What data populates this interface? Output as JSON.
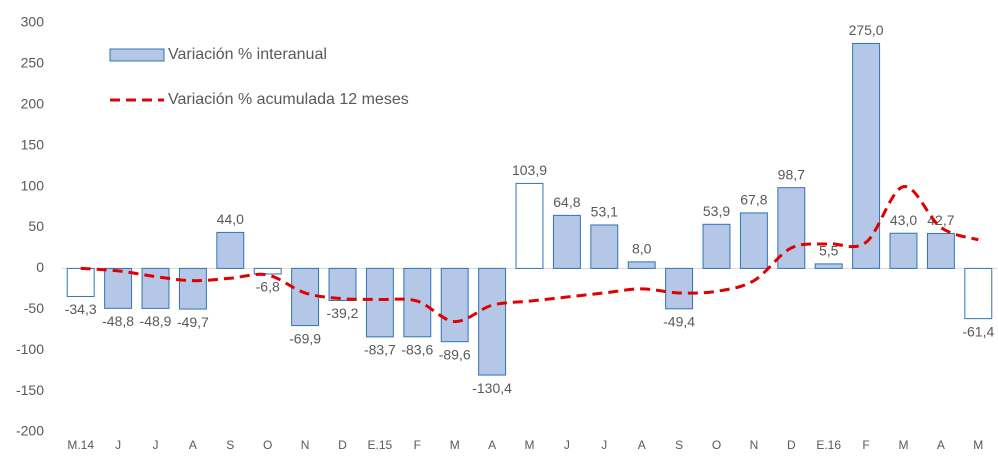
{
  "chart_data": {
    "type": "bar-line",
    "categories": [
      "M.14",
      "J",
      "J",
      "A",
      "S",
      "O",
      "N",
      "D",
      "E.15",
      "F",
      "M",
      "A",
      "M",
      "J",
      "J",
      "A",
      "S",
      "O",
      "N",
      "D",
      "E.16",
      "F",
      "M",
      "A",
      "M"
    ],
    "series": [
      {
        "name": "Variación % interanual",
        "type": "bar",
        "color": "#b4c7e7",
        "edge_color": "#2e75b6",
        "colors": [
          "#ffffff",
          "#b4c7e7",
          "#b4c7e7",
          "#b4c7e7",
          "#b4c7e7",
          "#ffffff",
          "#b4c7e7",
          "#b4c7e7",
          "#b4c7e7",
          "#b4c7e7",
          "#b4c7e7",
          "#b4c7e7",
          "#ffffff",
          "#b4c7e7",
          "#b4c7e7",
          "#b4c7e7",
          "#b4c7e7",
          "#b4c7e7",
          "#b4c7e7",
          "#b4c7e7",
          "#b4c7e7",
          "#b4c7e7",
          "#b4c7e7",
          "#b4c7e7",
          "#ffffff"
        ],
        "values": [
          -34.3,
          -48.8,
          -48.9,
          -49.7,
          44.0,
          -6.8,
          -69.9,
          -39.2,
          -83.7,
          -83.6,
          -89.6,
          -130.4,
          103.9,
          64.8,
          53.1,
          8.0,
          -49.4,
          53.9,
          67.8,
          98.7,
          5.5,
          275.0,
          43.0,
          42.7,
          -61.4
        ],
        "value_labels": [
          "-34,3",
          "-48,8",
          "-48,9",
          "-49,7",
          "44,0",
          "-6,8",
          "-69,9",
          "-39,2",
          "-83,7",
          "-83,6",
          "-89,6",
          "-130,4",
          "103,9",
          "64,8",
          "53,1",
          "8,0",
          "-49,4",
          "53,9",
          "67,8",
          "98,7",
          "5,5",
          "275,0",
          "43,0",
          "42,7",
          "-61,4"
        ]
      },
      {
        "name": "Variación % acumulada 12 meses",
        "type": "line",
        "color": "#e00000",
        "dashed": true,
        "values": [
          0,
          -3,
          -10,
          -15,
          -12,
          -8,
          -30,
          -37,
          -38,
          -40,
          -65,
          -45,
          -40,
          -35,
          -30,
          -25,
          -30,
          -28,
          -15,
          25,
          30,
          32,
          100,
          50,
          35
        ]
      }
    ],
    "ylim": [
      -200,
      300
    ],
    "yticks": [
      -200,
      -150,
      -100,
      -50,
      0,
      50,
      100,
      150,
      200,
      250,
      300
    ],
    "grid": false
  }
}
